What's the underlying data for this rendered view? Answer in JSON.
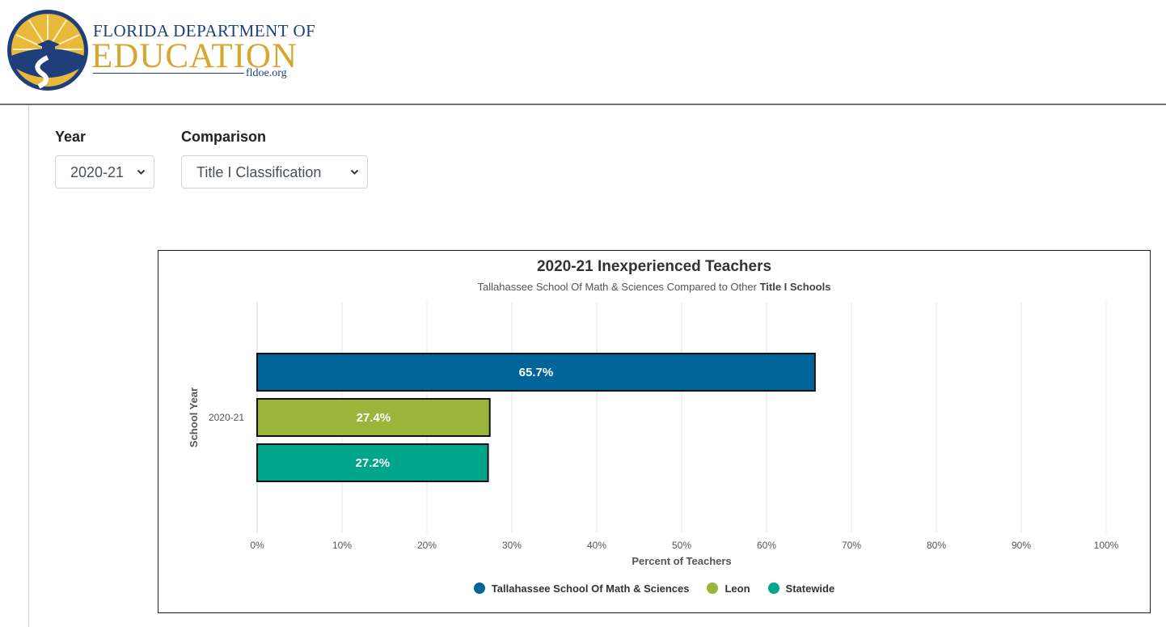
{
  "header": {
    "logo_line1": "Florida Department of",
    "logo_line2": "Education",
    "logo_url": "fldoe.org"
  },
  "filters": {
    "year_label": "Year",
    "year_value": "2020-21",
    "comparison_label": "Comparison",
    "comparison_value": "Title I Classification"
  },
  "chart_data": {
    "type": "bar",
    "orientation": "horizontal",
    "title": "2020-21 Inexperienced Teachers",
    "subtitle_prefix": "Tallahassee School Of Math & Sciences Compared to Other ",
    "subtitle_bold": "Title I Schools",
    "xlabel": "Percent of Teachers",
    "ylabel": "School Year",
    "categories": [
      "2020-21"
    ],
    "xlim": [
      0,
      100
    ],
    "xticks": [
      "0%",
      "10%",
      "20%",
      "30%",
      "40%",
      "50%",
      "60%",
      "70%",
      "80%",
      "90%",
      "100%"
    ],
    "grid": true,
    "legend_position": "bottom",
    "series": [
      {
        "name": "Tallahassee School Of Math & Sciences",
        "values": [
          65.7
        ],
        "label": "65.7%",
        "color": "#006699"
      },
      {
        "name": "Leon",
        "values": [
          27.4
        ],
        "label": "27.4%",
        "color": "#9bb53a"
      },
      {
        "name": "Statewide",
        "values": [
          27.2
        ],
        "label": "27.2%",
        "color": "#00a68a"
      }
    ]
  }
}
